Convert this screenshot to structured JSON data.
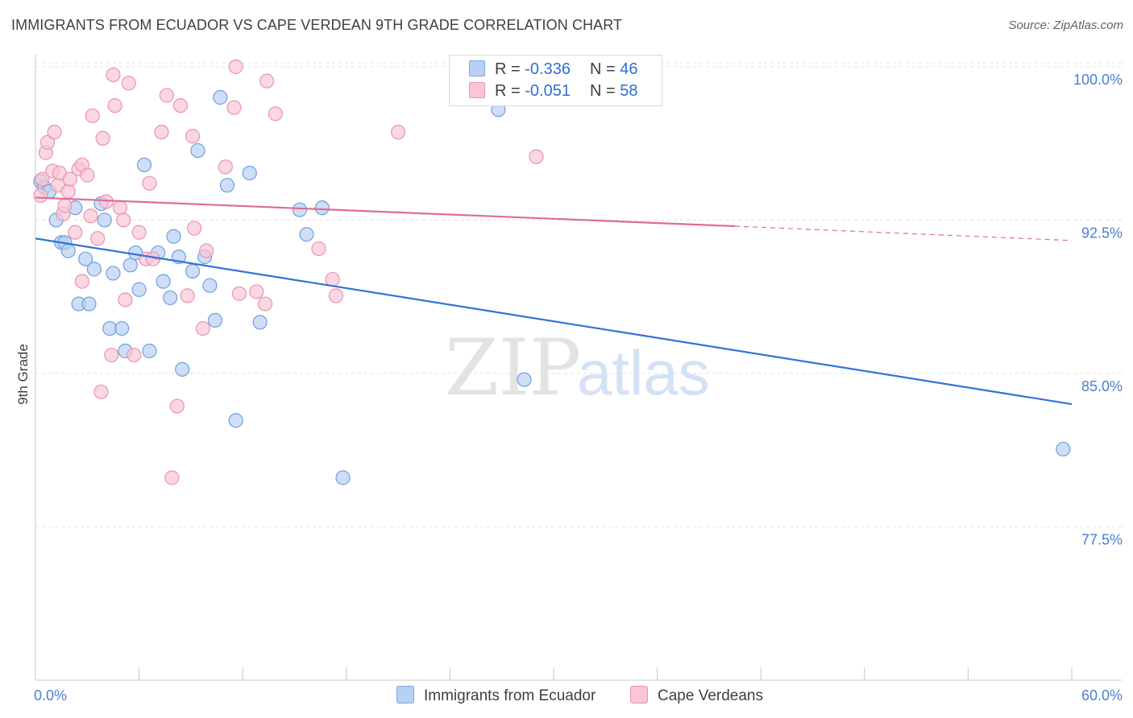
{
  "title": "IMMIGRANTS FROM ECUADOR VS CAPE VERDEAN 9TH GRADE CORRELATION CHART",
  "source": "Source: ZipAtlas.com",
  "watermark": {
    "zip": "ZIP",
    "atlas": "atlas"
  },
  "legend": {
    "r_prefix": "R = ",
    "n_prefix": "N = ",
    "rows": [
      {
        "r": "-0.336",
        "n": "46",
        "fill": "#b8d0f2",
        "border": "#7aa6e3"
      },
      {
        "r": "-0.051",
        "n": "58",
        "fill": "#f8c6d6",
        "border": "#ec93b1"
      }
    ]
  },
  "colors": {
    "blue_fill": "#b8d0f2",
    "blue_stroke": "#6f9fde",
    "blue_line": "#2f74d6",
    "pink_fill": "#f8c6d6",
    "pink_stroke": "#ea93b0",
    "pink_line": "#e06c94",
    "grid": "#e0e0e0",
    "axis_label": "#4a7fd0"
  },
  "chart_data": {
    "type": "scatter",
    "title": "IMMIGRANTS FROM ECUADOR VS CAPE VERDEAN 9TH GRADE CORRELATION CHART",
    "xlabel": "",
    "ylabel": "9th Grade",
    "xlim": [
      0,
      60
    ],
    "ylim": [
      70.0,
      100.9
    ],
    "x_tick_labels": [
      "0.0%",
      "60.0%"
    ],
    "y_ticks": [
      77.5,
      85.0,
      92.5,
      100.0
    ],
    "y_tick_labels": [
      "77.5%",
      "85.0%",
      "92.5%",
      "100.0%"
    ],
    "grid": true,
    "legend_position": "top-center",
    "series": [
      {
        "name": "Immigrants from Ecuador",
        "points": [
          [
            0.3,
            94.4
          ],
          [
            0.5,
            94.1
          ],
          [
            0.8,
            93.9
          ],
          [
            1.2,
            92.5
          ],
          [
            1.5,
            91.4
          ],
          [
            1.7,
            91.4
          ],
          [
            1.9,
            91.0
          ],
          [
            2.3,
            93.1
          ],
          [
            2.5,
            88.4
          ],
          [
            2.9,
            90.6
          ],
          [
            3.1,
            88.4
          ],
          [
            3.4,
            90.1
          ],
          [
            3.8,
            93.3
          ],
          [
            4.0,
            92.5
          ],
          [
            4.3,
            87.2
          ],
          [
            4.5,
            89.9
          ],
          [
            5.0,
            87.2
          ],
          [
            5.2,
            86.1
          ],
          [
            5.5,
            90.3
          ],
          [
            5.8,
            90.9
          ],
          [
            6.0,
            89.1
          ],
          [
            6.3,
            95.2
          ],
          [
            6.6,
            86.1
          ],
          [
            7.1,
            90.9
          ],
          [
            7.4,
            89.5
          ],
          [
            7.8,
            88.7
          ],
          [
            8.0,
            91.7
          ],
          [
            8.3,
            90.7
          ],
          [
            8.5,
            85.2
          ],
          [
            9.1,
            90.0
          ],
          [
            9.4,
            95.9
          ],
          [
            9.8,
            90.7
          ],
          [
            10.1,
            89.3
          ],
          [
            10.4,
            87.6
          ],
          [
            10.7,
            98.5
          ],
          [
            11.1,
            94.2
          ],
          [
            11.6,
            82.7
          ],
          [
            12.4,
            94.8
          ],
          [
            13.0,
            87.5
          ],
          [
            15.3,
            93.0
          ],
          [
            15.7,
            91.8
          ],
          [
            16.6,
            93.1
          ],
          [
            17.8,
            79.9
          ],
          [
            26.8,
            97.9
          ],
          [
            28.3,
            84.7
          ],
          [
            59.5,
            81.3
          ]
        ]
      },
      {
        "name": "Cape Verdeans",
        "points": [
          [
            0.3,
            93.7
          ],
          [
            0.4,
            94.5
          ],
          [
            0.6,
            95.8
          ],
          [
            0.7,
            96.3
          ],
          [
            1.0,
            94.9
          ],
          [
            1.1,
            96.8
          ],
          [
            1.3,
            94.2
          ],
          [
            1.4,
            94.8
          ],
          [
            1.6,
            92.8
          ],
          [
            1.7,
            93.2
          ],
          [
            1.9,
            93.9
          ],
          [
            2.0,
            94.5
          ],
          [
            2.3,
            91.9
          ],
          [
            2.5,
            95.0
          ],
          [
            2.7,
            95.2
          ],
          [
            2.7,
            89.5
          ],
          [
            3.0,
            94.7
          ],
          [
            3.2,
            92.7
          ],
          [
            3.3,
            97.6
          ],
          [
            3.6,
            91.6
          ],
          [
            3.8,
            84.1
          ],
          [
            3.9,
            96.5
          ],
          [
            4.1,
            93.4
          ],
          [
            4.4,
            85.9
          ],
          [
            4.5,
            99.6
          ],
          [
            4.6,
            98.1
          ],
          [
            4.9,
            93.1
          ],
          [
            5.1,
            92.5
          ],
          [
            5.2,
            88.6
          ],
          [
            5.4,
            99.2
          ],
          [
            5.7,
            85.9
          ],
          [
            6.0,
            91.9
          ],
          [
            6.4,
            90.6
          ],
          [
            6.6,
            94.3
          ],
          [
            7.3,
            96.8
          ],
          [
            7.6,
            98.6
          ],
          [
            7.9,
            79.9
          ],
          [
            8.2,
            83.4
          ],
          [
            8.4,
            98.1
          ],
          [
            8.8,
            88.8
          ],
          [
            9.1,
            96.6
          ],
          [
            9.2,
            92.1
          ],
          [
            9.7,
            87.2
          ],
          [
            9.9,
            91.0
          ],
          [
            11.0,
            95.1
          ],
          [
            11.5,
            98.0
          ],
          [
            11.6,
            100.0
          ],
          [
            11.8,
            88.9
          ],
          [
            12.8,
            89.0
          ],
          [
            13.3,
            88.4
          ],
          [
            13.4,
            99.3
          ],
          [
            13.9,
            97.7
          ],
          [
            16.4,
            91.1
          ],
          [
            17.2,
            89.6
          ],
          [
            17.4,
            88.8
          ],
          [
            21.0,
            96.8
          ],
          [
            29.0,
            95.6
          ],
          [
            6.8,
            90.6
          ]
        ]
      }
    ],
    "trendlines": [
      {
        "series": "Immigrants from Ecuador",
        "x": [
          0,
          60
        ],
        "y": [
          91.6,
          83.5
        ],
        "style": "solid"
      },
      {
        "series": "Cape Verdeans",
        "x": [
          0,
          40.5
        ],
        "y": [
          93.6,
          92.2
        ],
        "style": "solid"
      },
      {
        "series": "Cape Verdeans",
        "x": [
          40.5,
          60
        ],
        "y": [
          92.2,
          91.5
        ],
        "style": "dashed"
      }
    ]
  }
}
